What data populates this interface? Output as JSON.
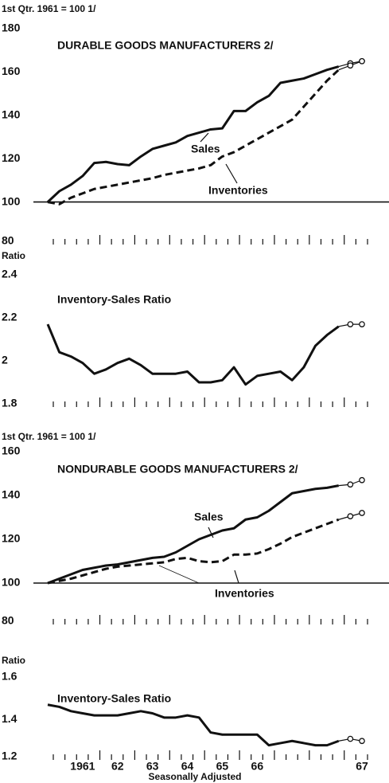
{
  "x_axis": {
    "categories": [
      null,
      null,
      null,
      "1961",
      null,
      null,
      "62",
      null,
      null,
      "63",
      null,
      null,
      "64",
      null,
      null,
      "65",
      null,
      null,
      "66",
      null,
      null,
      null,
      null,
      null,
      null,
      null,
      null,
      "67"
    ],
    "label": "Seasonally Adjusted"
  },
  "chart_data": [
    {
      "type": "line",
      "unit_label": "1st Qtr. 1961 = 100 1/",
      "title": "DURABLE GOODS MANUFACTURERS 2/",
      "ylim": [
        80,
        180
      ],
      "yticks": [
        80,
        100,
        120,
        140,
        160,
        180
      ],
      "reference_line": 100,
      "series": [
        {
          "name": "Sales",
          "color": "#111111",
          "dashed": false,
          "open_markers_from": 26,
          "values": [
            100,
            105,
            108,
            112,
            118,
            118.5,
            117.5,
            117,
            121,
            124.5,
            126,
            127.5,
            130.5,
            132,
            133.5,
            134,
            142,
            142,
            146,
            149,
            155,
            156,
            157,
            159,
            161,
            162.5,
            164,
            165
          ]
        },
        {
          "name": "Inventories",
          "color": "#111111",
          "dashed": true,
          "open_markers_from": 26,
          "values": [
            100,
            99,
            102,
            104,
            106,
            107,
            108,
            109,
            110,
            111,
            112.5,
            113.5,
            114.5,
            115.5,
            117,
            121,
            123,
            126,
            129,
            132,
            135,
            138,
            144,
            150,
            156,
            161,
            163,
            165
          ]
        }
      ]
    },
    {
      "type": "line",
      "unit_label": "Ratio",
      "title": "Inventory-Sales Ratio",
      "ylim": [
        1.8,
        2.4
      ],
      "yticks": [
        1.8,
        2.0,
        2.2,
        2.4
      ],
      "series": [
        {
          "color": "#111111",
          "dashed": false,
          "open_markers_from": 26,
          "values": [
            2.17,
            2.04,
            2.02,
            1.99,
            1.94,
            1.96,
            1.99,
            2.01,
            1.98,
            1.94,
            1.94,
            1.94,
            1.95,
            1.9,
            1.9,
            1.91,
            1.97,
            1.89,
            1.93,
            1.94,
            1.95,
            1.91,
            1.97,
            2.07,
            2.12,
            2.16,
            2.17,
            2.17
          ]
        }
      ]
    },
    {
      "type": "line",
      "unit_label": "1st Qtr. 1961 = 100 1/",
      "title": "NONDURABLE GOODS MANUFACTURERS 2/",
      "ylim": [
        80,
        160
      ],
      "yticks": [
        80,
        100,
        120,
        140,
        160
      ],
      "reference_line": 100,
      "series": [
        {
          "name": "Sales",
          "color": "#111111",
          "dashed": false,
          "open_markers_from": 26,
          "values": [
            100,
            102,
            104,
            106,
            107,
            108,
            108.5,
            109.5,
            110.5,
            111.5,
            112,
            114,
            117,
            120,
            122,
            124,
            125,
            129,
            130,
            133,
            137,
            141,
            142,
            143,
            143.5,
            144.5,
            145,
            147
          ]
        },
        {
          "name": "Inventories",
          "color": "#111111",
          "dashed": true,
          "open_markers_from": 26,
          "values": [
            100,
            101,
            102,
            103.5,
            105,
            106.5,
            107.5,
            108,
            108.5,
            109,
            109.5,
            111,
            111.5,
            110,
            109.5,
            110,
            113,
            113,
            113.5,
            115.5,
            118,
            121,
            123,
            125,
            127,
            129,
            130.5,
            132
          ]
        }
      ]
    },
    {
      "type": "line",
      "unit_label": "Ratio",
      "title": "Inventory-Sales Ratio",
      "ylim": [
        1.2,
        1.6
      ],
      "yticks": [
        1.2,
        1.4,
        1.6
      ],
      "series": [
        {
          "color": "#111111",
          "dashed": false,
          "open_markers_from": 26,
          "values": [
            1.47,
            1.46,
            1.44,
            1.43,
            1.42,
            1.42,
            1.42,
            1.43,
            1.44,
            1.43,
            1.41,
            1.41,
            1.42,
            1.41,
            1.34,
            1.33,
            1.33,
            1.33,
            1.33,
            1.28,
            1.29,
            1.3,
            1.29,
            1.28,
            1.28,
            1.3,
            1.31,
            1.3
          ]
        }
      ]
    }
  ]
}
